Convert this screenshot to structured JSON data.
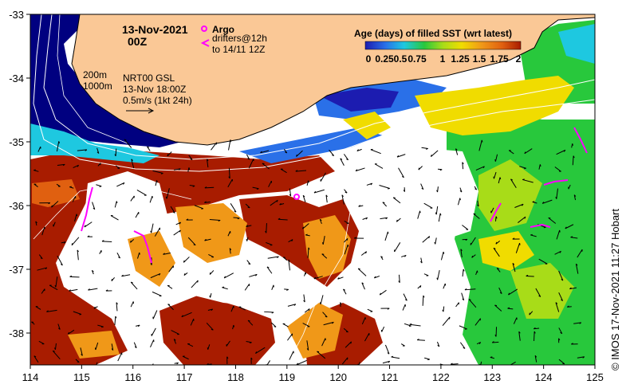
{
  "map": {
    "date": "13-Nov-2021",
    "hour": "00Z",
    "argo_label": "Argo",
    "drifters_label": "drifters@12h",
    "drifters_range": "to 14/11 12Z",
    "isobath_200": "200m",
    "isobath_1000": "1000m",
    "current_label": "NRT00 GSL",
    "current_time": "13-Nov 18:00Z",
    "scale_label": "0.5m/s (1kt 24h)",
    "copyright": "© IMOS 17-Nov-2021 11:27 Hobart"
  },
  "legend": {
    "title": "Age (days) of filled SST (wrt latest)",
    "ticks": [
      "0",
      "0.25",
      "0.5",
      "0.75",
      "1",
      "1.25",
      "1.5",
      "1.75",
      "2"
    ],
    "colors": [
      "#1c1cb0",
      "#2a70e8",
      "#1ec8e0",
      "#28c83c",
      "#a8dc18",
      "#f0dc00",
      "#f09818",
      "#e06010",
      "#a81c00"
    ]
  },
  "axes": {
    "lon_ticks": [
      "114",
      "115",
      "116",
      "117",
      "118",
      "119",
      "120",
      "121",
      "122",
      "123",
      "124",
      "125"
    ],
    "lat_ticks": [
      "-33",
      "-34",
      "-35",
      "-36",
      "-37",
      "-38"
    ],
    "lon_range": [
      114,
      125
    ],
    "lat_range": [
      -38.5,
      -33
    ]
  },
  "colors": {
    "land": "#fac896",
    "no_data": "#ffffff",
    "deep_navy": "#000080",
    "drifter": "#ff00ff"
  }
}
